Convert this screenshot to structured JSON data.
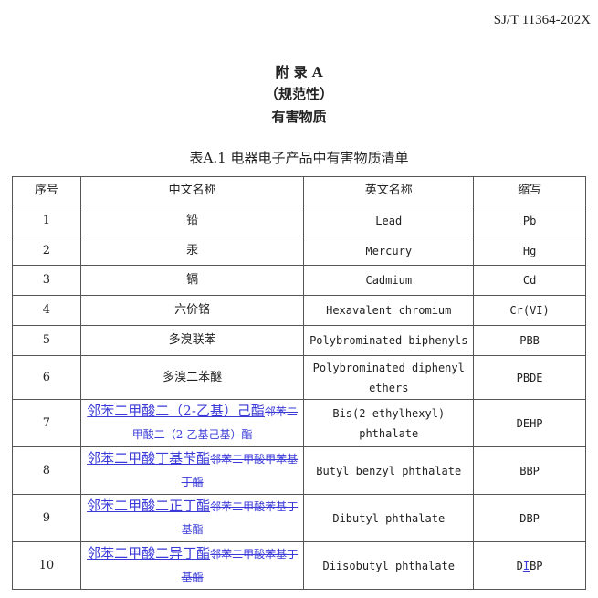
{
  "standard_number": "SJ/T 11364-202X",
  "appendix": {
    "title": "附 录 A",
    "type": "（规范性）",
    "subject": "有害物质"
  },
  "table": {
    "caption": "表A.1 电器电子产品中有害物质清单",
    "headers": [
      "序号",
      "中文名称",
      "英文名称",
      "缩写"
    ],
    "rows": [
      {
        "no": "1",
        "cn": "铅",
        "en": "Lead",
        "abbr": "Pb"
      },
      {
        "no": "2",
        "cn": "汞",
        "en": "Mercury",
        "abbr": "Hg"
      },
      {
        "no": "3",
        "cn": "镉",
        "en": "Cadmium",
        "abbr": "Cd"
      },
      {
        "no": "4",
        "cn": "六价铬",
        "en": "Hexavalent chromium",
        "abbr": "Cr(VI)"
      },
      {
        "no": "5",
        "cn": "多溴联苯",
        "en": "Polybrominated biphenyls",
        "abbr": "PBB"
      },
      {
        "no": "6",
        "cn": "多溴二苯醚",
        "en": "Polybrominated diphenyl ethers",
        "abbr": "PBDE"
      },
      {
        "no": "7",
        "cn_inserted": "邻苯二甲酸二（2-乙基）己酯",
        "cn_deleted": "邻苯二甲酸二（2-乙基己基）酯",
        "en": "Bis(2-ethylhexyl) phthalate",
        "abbr": "DEHP"
      },
      {
        "no": "8",
        "cn_inserted": "邻苯二甲酸丁基苄酯",
        "cn_deleted": "邻苯二甲酸甲苯基丁酯",
        "en": "Butyl benzyl phthalate",
        "abbr": "BBP"
      },
      {
        "no": "9",
        "cn_inserted": "邻苯二甲酸二正丁酯",
        "cn_deleted": "邻苯二甲酸苯基丁基酯",
        "en": "Dibutyl phthalate",
        "abbr": "DBP"
      },
      {
        "no": "10",
        "cn_inserted": "邻苯二甲酸二异丁酯",
        "cn_deleted": "邻苯二甲酸苯基丁基酯",
        "en": "Diisobutyl phthalate",
        "abbr_parts": [
          "D",
          "I",
          "BP"
        ]
      }
    ]
  },
  "colors": {
    "revision": "#3a3ad8"
  }
}
